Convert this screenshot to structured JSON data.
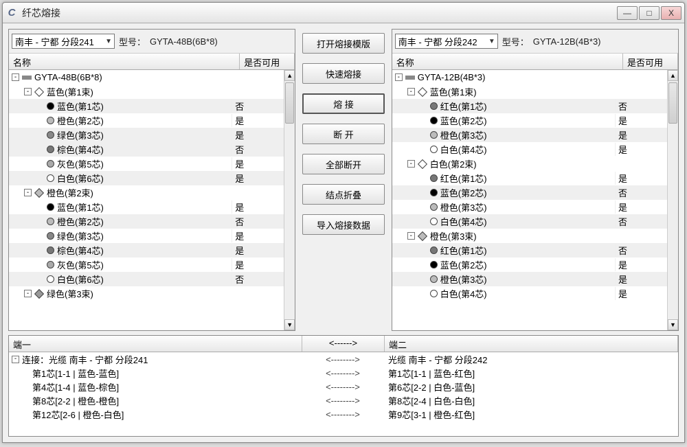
{
  "window": {
    "title": "纤芯熔接"
  },
  "winbtns": {
    "min": "—",
    "max": "□",
    "close": "X"
  },
  "left": {
    "combo": "南丰 - 宁都 分段241",
    "modelLabel": "型号：",
    "model": "GYTA-48B(6B*8)",
    "hdrName": "名称",
    "hdrUsable": "是否可用",
    "tree": [
      {
        "depth": 0,
        "toggle": "-",
        "iconType": "dash",
        "label": "GYTA-48B(6B*8)",
        "usable": ""
      },
      {
        "depth": 1,
        "toggle": "-",
        "iconType": "diamond",
        "iconFill": "#ffffff",
        "label": "蓝色(第1束)",
        "usable": ""
      },
      {
        "depth": 2,
        "iconType": "bullet",
        "iconFill": "#000000",
        "label": "蓝色(第1芯)",
        "usable": "否",
        "alt": true
      },
      {
        "depth": 2,
        "iconType": "bullet",
        "iconFill": "#bbbbbb",
        "label": "橙色(第2芯)",
        "usable": "是"
      },
      {
        "depth": 2,
        "iconType": "bullet",
        "iconFill": "#888888",
        "label": "绿色(第3芯)",
        "usable": "是",
        "alt": true
      },
      {
        "depth": 2,
        "iconType": "bullet",
        "iconFill": "#777777",
        "label": "棕色(第4芯)",
        "usable": "否",
        "alt": true,
        "highlight": true
      },
      {
        "depth": 2,
        "iconType": "bullet",
        "iconFill": "#aaaaaa",
        "label": "灰色(第5芯)",
        "usable": "是"
      },
      {
        "depth": 2,
        "iconType": "bullet",
        "iconFill": "#ffffff",
        "label": "白色(第6芯)",
        "usable": "是",
        "alt": true
      },
      {
        "depth": 1,
        "toggle": "-",
        "iconType": "diamond",
        "iconFill": "#bbbbbb",
        "label": "橙色(第2束)",
        "usable": ""
      },
      {
        "depth": 2,
        "iconType": "bullet",
        "iconFill": "#000000",
        "label": "蓝色(第1芯)",
        "usable": "是"
      },
      {
        "depth": 2,
        "iconType": "bullet",
        "iconFill": "#bbbbbb",
        "label": "橙色(第2芯)",
        "usable": "否",
        "alt": true,
        "highlight": true
      },
      {
        "depth": 2,
        "iconType": "bullet",
        "iconFill": "#888888",
        "label": "绿色(第3芯)",
        "usable": "是"
      },
      {
        "depth": 2,
        "iconType": "bullet",
        "iconFill": "#777777",
        "label": "棕色(第4芯)",
        "usable": "是",
        "alt": true
      },
      {
        "depth": 2,
        "iconType": "bullet",
        "iconFill": "#aaaaaa",
        "label": "灰色(第5芯)",
        "usable": "是"
      },
      {
        "depth": 2,
        "iconType": "bullet",
        "iconFill": "#ffffff",
        "label": "白色(第6芯)",
        "usable": "否",
        "alt": true,
        "highlight": true
      },
      {
        "depth": 1,
        "toggle": "-",
        "iconType": "diamond",
        "iconFill": "#999999",
        "label": "绿色(第3束)",
        "usable": ""
      }
    ]
  },
  "mid": {
    "buttons": [
      {
        "label": "打开熔接模版"
      },
      {
        "label": "快速熔接"
      },
      {
        "label": "熔  接",
        "primary": true
      },
      {
        "label": "断  开"
      },
      {
        "label": "全部断开"
      },
      {
        "label": "结点折叠"
      },
      {
        "label": "导入熔接数据"
      }
    ]
  },
  "right": {
    "combo": "南丰 - 宁都 分段242",
    "modelLabel": "型号：",
    "model": "GYTA-12B(4B*3)",
    "hdrName": "名称",
    "hdrUsable": "是否可用",
    "tree": [
      {
        "depth": 0,
        "toggle": "-",
        "iconType": "dash",
        "label": "GYTA-12B(4B*3)",
        "usable": ""
      },
      {
        "depth": 1,
        "toggle": "-",
        "iconType": "diamond",
        "iconFill": "#ffffff",
        "label": "蓝色(第1束)",
        "usable": ""
      },
      {
        "depth": 2,
        "iconType": "bullet",
        "iconFill": "#777777",
        "label": "红色(第1芯)",
        "usable": "否",
        "alt": true
      },
      {
        "depth": 2,
        "iconType": "bullet",
        "iconFill": "#000000",
        "label": "蓝色(第2芯)",
        "usable": "是"
      },
      {
        "depth": 2,
        "iconType": "bullet",
        "iconFill": "#bbbbbb",
        "label": "橙色(第3芯)",
        "usable": "是",
        "alt": true
      },
      {
        "depth": 2,
        "iconType": "bullet",
        "iconFill": "#ffffff",
        "label": "白色(第4芯)",
        "usable": "是"
      },
      {
        "depth": 1,
        "toggle": "-",
        "iconType": "diamond",
        "iconFill": "#ffffff",
        "label": "白色(第2束)",
        "usable": ""
      },
      {
        "depth": 2,
        "iconType": "bullet",
        "iconFill": "#777777",
        "label": "红色(第1芯)",
        "usable": "是"
      },
      {
        "depth": 2,
        "iconType": "bullet",
        "iconFill": "#000000",
        "label": "蓝色(第2芯)",
        "usable": "否",
        "alt": true,
        "highlight": true
      },
      {
        "depth": 2,
        "iconType": "bullet",
        "iconFill": "#bbbbbb",
        "label": "橙色(第3芯)",
        "usable": "是"
      },
      {
        "depth": 2,
        "iconType": "bullet",
        "iconFill": "#ffffff",
        "label": "白色(第4芯)",
        "usable": "否",
        "alt": true,
        "highlight": true
      },
      {
        "depth": 1,
        "toggle": "-",
        "iconType": "diamond",
        "iconFill": "#bbbbbb",
        "label": "橙色(第3束)",
        "usable": ""
      },
      {
        "depth": 2,
        "iconType": "bullet",
        "iconFill": "#777777",
        "label": "红色(第1芯)",
        "usable": "否",
        "alt": true,
        "highlight": true
      },
      {
        "depth": 2,
        "iconType": "bullet",
        "iconFill": "#000000",
        "label": "蓝色(第2芯)",
        "usable": "是"
      },
      {
        "depth": 2,
        "iconType": "bullet",
        "iconFill": "#bbbbbb",
        "label": "橙色(第3芯)",
        "usable": "是",
        "alt": true
      },
      {
        "depth": 2,
        "iconType": "bullet",
        "iconFill": "#ffffff",
        "label": "白色(第4芯)",
        "usable": "是"
      }
    ]
  },
  "bottom": {
    "hdr1": "端一",
    "hdr2": "<------>",
    "hdr3": "端二",
    "rows": [
      {
        "toggle": "-",
        "c1": "连接：光缆 南丰 - 宁都 分段241",
        "c2": "<-------->",
        "c3": "光缆 南丰 - 宁都 分段242"
      },
      {
        "indent": true,
        "c1": "第1芯[1-1 | 蓝色-蓝色]",
        "c2": "<-------->",
        "c3": "第1芯[1-1 | 蓝色-红色]"
      },
      {
        "indent": true,
        "c1": "第4芯[1-4 | 蓝色-棕色]",
        "c2": "<-------->",
        "c3": "第6芯[2-2 | 白色-蓝色]"
      },
      {
        "indent": true,
        "c1": "第8芯[2-2 | 橙色-橙色]",
        "c2": "<-------->",
        "c3": "第8芯[2-4 | 白色-白色]"
      },
      {
        "indent": true,
        "c1": "第12芯[2-6 | 橙色-白色]",
        "c2": "<-------->",
        "c3": "第9芯[3-1 | 橙色-红色]"
      }
    ]
  }
}
